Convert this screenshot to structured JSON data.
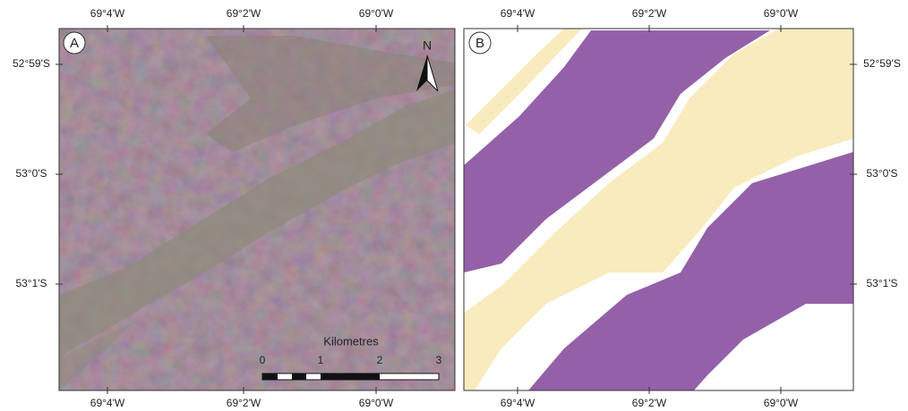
{
  "panels": [
    {
      "label": "A",
      "top_labels": [
        "69°4'W",
        "69°2'W",
        "69°0'W"
      ],
      "left_labels": [
        "52°59'S",
        "53°0'S",
        "53°1'S"
      ],
      "bottom_labels": [
        "69°4'W",
        "69°2'W",
        "69°0'W"
      ],
      "north": "N",
      "scale_title": "Kilometres",
      "scale_ticks": [
        "0",
        "1",
        "2",
        "3"
      ]
    },
    {
      "label": "B",
      "top_labels": [
        "69°4'W",
        "69°2'W",
        "69°0'W"
      ],
      "right_labels": [
        "52°59'S",
        "53°0'S",
        "53°1'S"
      ],
      "bottom_labels": [
        "69°4'W",
        "69°2'W",
        "69°0'W"
      ]
    }
  ]
}
